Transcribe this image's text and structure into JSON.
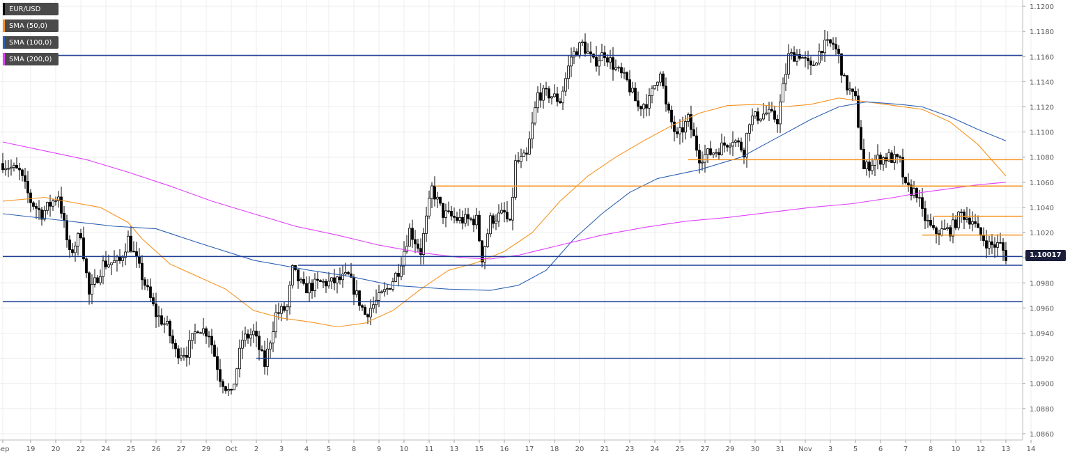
{
  "chart_data": {
    "type": "candlestick",
    "symbol": "EUR/USD",
    "title": "",
    "xlabel": "",
    "ylabel": "",
    "ylim": [
      1.0855,
      1.1205
    ],
    "y_ticks": [
      "1.1200",
      "1.1180",
      "1.1160",
      "1.1140",
      "1.1120",
      "1.1100",
      "1.1080",
      "1.1060",
      "1.1040",
      "1.1020",
      "1.1000",
      "1.0980",
      "1.0960",
      "1.0940",
      "1.0920",
      "1.0900",
      "1.0880",
      "1.0860"
    ],
    "x_ticks": [
      {
        "label": "Sep",
        "i": 0
      },
      {
        "label": "19",
        "i": 10
      },
      {
        "label": "20",
        "i": 19
      },
      {
        "label": "22",
        "i": 28
      },
      {
        "label": "24",
        "i": 37
      },
      {
        "label": "25",
        "i": 46
      },
      {
        "label": "26",
        "i": 55
      },
      {
        "label": "27",
        "i": 64
      },
      {
        "label": "29",
        "i": 73
      },
      {
        "label": "Oct",
        "i": 82
      },
      {
        "label": "2",
        "i": 91
      },
      {
        "label": "3",
        "i": 100
      },
      {
        "label": "4",
        "i": 109
      },
      {
        "label": "5",
        "i": 117
      },
      {
        "label": "8",
        "i": 126
      },
      {
        "label": "9",
        "i": 135
      },
      {
        "label": "10",
        "i": 144
      },
      {
        "label": "11",
        "i": 153
      },
      {
        "label": "13",
        "i": 162
      },
      {
        "label": "15",
        "i": 171
      },
      {
        "label": "16",
        "i": 180
      },
      {
        "label": "17",
        "i": 189
      },
      {
        "label": "18",
        "i": 198
      },
      {
        "label": "20",
        "i": 207
      },
      {
        "label": "21",
        "i": 216
      },
      {
        "label": "23",
        "i": 225
      },
      {
        "label": "24",
        "i": 234
      },
      {
        "label": "25",
        "i": 243
      },
      {
        "label": "27",
        "i": 252
      },
      {
        "label": "29",
        "i": 261
      },
      {
        "label": "30",
        "i": 270
      },
      {
        "label": "31",
        "i": 279
      },
      {
        "label": "Nov",
        "i": 288
      },
      {
        "label": "3",
        "i": 297
      },
      {
        "label": "5",
        "i": 306
      },
      {
        "label": "6",
        "i": 315
      },
      {
        "label": "7",
        "i": 324
      },
      {
        "label": "8",
        "i": 333
      },
      {
        "label": "10",
        "i": 342
      },
      {
        "label": "12",
        "i": 351
      },
      {
        "label": "13",
        "i": 360
      },
      {
        "label": "14",
        "i": 369
      }
    ],
    "anchors": [
      [
        0,
        1.1075
      ],
      [
        6,
        1.1068
      ],
      [
        10,
        1.1045
      ],
      [
        14,
        1.1035
      ],
      [
        20,
        1.105
      ],
      [
        24,
        1.1002
      ],
      [
        28,
        1.102
      ],
      [
        31,
        1.097
      ],
      [
        36,
        1.0995
      ],
      [
        42,
        1.0997
      ],
      [
        45,
        1.1015
      ],
      [
        50,
        1.0985
      ],
      [
        55,
        1.0955
      ],
      [
        59,
        1.0945
      ],
      [
        62,
        1.0925
      ],
      [
        66,
        1.0925
      ],
      [
        70,
        1.0945
      ],
      [
        74,
        1.094
      ],
      [
        78,
        1.0905
      ],
      [
        82,
        1.089
      ],
      [
        86,
        1.0935
      ],
      [
        90,
        1.094
      ],
      [
        94,
        1.0915
      ],
      [
        98,
        1.0955
      ],
      [
        102,
        1.096
      ],
      [
        104,
        1.099
      ],
      [
        108,
        1.0975
      ],
      [
        114,
        1.098
      ],
      [
        118,
        1.098
      ],
      [
        124,
        1.0985
      ],
      [
        130,
        1.0955
      ],
      [
        134,
        1.0965
      ],
      [
        138,
        1.0975
      ],
      [
        142,
        1.099
      ],
      [
        146,
        1.1022
      ],
      [
        150,
        1.1005
      ],
      [
        154,
        1.1055
      ],
      [
        158,
        1.1035
      ],
      [
        164,
        1.103
      ],
      [
        170,
        1.103
      ],
      [
        172,
        1.1
      ],
      [
        175,
        1.103
      ],
      [
        180,
        1.1035
      ],
      [
        182,
        1.1025
      ],
      [
        184,
        1.1075
      ],
      [
        188,
        1.108
      ],
      [
        192,
        1.113
      ],
      [
        196,
        1.113
      ],
      [
        200,
        1.1125
      ],
      [
        204,
        1.116
      ],
      [
        208,
        1.117
      ],
      [
        212,
        1.1155
      ],
      [
        216,
        1.1163
      ],
      [
        220,
        1.115
      ],
      [
        224,
        1.114
      ],
      [
        228,
        1.112
      ],
      [
        232,
        1.1125
      ],
      [
        236,
        1.115
      ],
      [
        238,
        1.112
      ],
      [
        242,
        1.1095
      ],
      [
        246,
        1.111
      ],
      [
        250,
        1.108
      ],
      [
        256,
        1.1085
      ],
      [
        262,
        1.1095
      ],
      [
        266,
        1.1085
      ],
      [
        268,
        1.111
      ],
      [
        274,
        1.1115
      ],
      [
        278,
        1.111
      ],
      [
        282,
        1.116
      ],
      [
        286,
        1.1162
      ],
      [
        290,
        1.115
      ],
      [
        294,
        1.1168
      ],
      [
        298,
        1.117
      ],
      [
        300,
        1.116
      ],
      [
        302,
        1.114
      ],
      [
        306,
        1.1125
      ],
      [
        309,
        1.107
      ],
      [
        313,
        1.1078
      ],
      [
        318,
        1.108
      ],
      [
        322,
        1.1076
      ],
      [
        324,
        1.1055
      ],
      [
        328,
        1.1052
      ],
      [
        330,
        1.1035
      ],
      [
        334,
        1.102
      ],
      [
        340,
        1.1022
      ],
      [
        344,
        1.1035
      ],
      [
        348,
        1.103
      ],
      [
        350,
        1.102
      ],
      [
        354,
        1.101
      ],
      [
        358,
        1.101
      ],
      [
        360,
        1.1001
      ]
    ],
    "series": [
      {
        "name": "EUR/USD",
        "color": "#000000"
      },
      {
        "name": "SMA (50,0)",
        "color": "#f7931e"
      },
      {
        "name": "SMA (100,0)",
        "color": "#2b5fb3"
      },
      {
        "name": "SMA (200,0)",
        "color": "#e040fb"
      }
    ],
    "sma50": [
      [
        0,
        1.1045
      ],
      [
        15,
        1.1048
      ],
      [
        35,
        1.104
      ],
      [
        45,
        1.1028
      ],
      [
        50,
        1.1015
      ],
      [
        60,
        1.0995
      ],
      [
        70,
        1.0985
      ],
      [
        80,
        1.0975
      ],
      [
        90,
        1.0958
      ],
      [
        100,
        1.0952
      ],
      [
        110,
        1.0949
      ],
      [
        120,
        1.0945
      ],
      [
        130,
        1.0948
      ],
      [
        140,
        1.0958
      ],
      [
        150,
        1.0975
      ],
      [
        160,
        1.099
      ],
      [
        170,
        1.0996
      ],
      [
        180,
        1.1005
      ],
      [
        190,
        1.102
      ],
      [
        200,
        1.1045
      ],
      [
        210,
        1.1065
      ],
      [
        220,
        1.108
      ],
      [
        230,
        1.1093
      ],
      [
        240,
        1.1105
      ],
      [
        250,
        1.1115
      ],
      [
        260,
        1.1121
      ],
      [
        270,
        1.1122
      ],
      [
        280,
        1.112
      ],
      [
        290,
        1.1122
      ],
      [
        300,
        1.1127
      ],
      [
        310,
        1.1124
      ],
      [
        320,
        1.1121
      ],
      [
        330,
        1.1118
      ],
      [
        340,
        1.1108
      ],
      [
        350,
        1.109
      ],
      [
        360,
        1.1065
      ]
    ],
    "sma100": [
      [
        0,
        1.1035
      ],
      [
        20,
        1.103
      ],
      [
        40,
        1.1025
      ],
      [
        55,
        1.1023
      ],
      [
        70,
        1.1012
      ],
      [
        90,
        1.0998
      ],
      [
        110,
        1.099
      ],
      [
        125,
        1.0985
      ],
      [
        140,
        1.0978
      ],
      [
        160,
        1.0975
      ],
      [
        175,
        1.0974
      ],
      [
        185,
        1.0978
      ],
      [
        195,
        1.099
      ],
      [
        205,
        1.1015
      ],
      [
        215,
        1.1035
      ],
      [
        225,
        1.1052
      ],
      [
        235,
        1.1063
      ],
      [
        250,
        1.107
      ],
      [
        265,
        1.108
      ],
      [
        280,
        1.1098
      ],
      [
        290,
        1.111
      ],
      [
        300,
        1.112
      ],
      [
        310,
        1.1124
      ],
      [
        322,
        1.1122
      ],
      [
        330,
        1.112
      ],
      [
        340,
        1.1112
      ],
      [
        350,
        1.1102
      ],
      [
        360,
        1.1093
      ]
    ],
    "sma200": [
      [
        0,
        1.1092
      ],
      [
        15,
        1.1085
      ],
      [
        30,
        1.1078
      ],
      [
        45,
        1.1068
      ],
      [
        60,
        1.1057
      ],
      [
        75,
        1.1045
      ],
      [
        90,
        1.1035
      ],
      [
        105,
        1.1025
      ],
      [
        120,
        1.1018
      ],
      [
        135,
        1.101
      ],
      [
        150,
        1.1004
      ],
      [
        165,
        1.1
      ],
      [
        175,
        1.0999
      ],
      [
        185,
        1.1002
      ],
      [
        200,
        1.101
      ],
      [
        215,
        1.1018
      ],
      [
        230,
        1.1024
      ],
      [
        245,
        1.1029
      ],
      [
        260,
        1.1032
      ],
      [
        275,
        1.1036
      ],
      [
        290,
        1.104
      ],
      [
        305,
        1.1043
      ],
      [
        320,
        1.1048
      ],
      [
        330,
        1.1052
      ],
      [
        340,
        1.1055
      ],
      [
        350,
        1.1058
      ],
      [
        360,
        1.106
      ]
    ],
    "hlines": [
      {
        "value": 1.1161,
        "color": "#1f3f99",
        "i0": 0,
        "i1": 376
      },
      {
        "value": 1.1078,
        "color": "#f7931e",
        "i0": 246,
        "i1": 376
      },
      {
        "value": 1.1057,
        "color": "#f7931e",
        "i0": 155,
        "i1": 376
      },
      {
        "value": 1.1033,
        "color": "#f7931e",
        "i0": 334,
        "i1": 376
      },
      {
        "value": 1.1018,
        "color": "#f7931e",
        "i0": 330,
        "i1": 376
      },
      {
        "value": 1.1001,
        "color": "#1f3f99",
        "i0": 0,
        "i1": 376
      },
      {
        "value": 1.0994,
        "color": "#1f3f99",
        "i0": 106,
        "i1": 376
      },
      {
        "value": 1.0965,
        "color": "#1f3f99",
        "i0": 0,
        "i1": 376
      },
      {
        "value": 1.092,
        "color": "#1f3f99",
        "i0": 91,
        "i1": 376
      }
    ],
    "last_price": "1.10017"
  }
}
